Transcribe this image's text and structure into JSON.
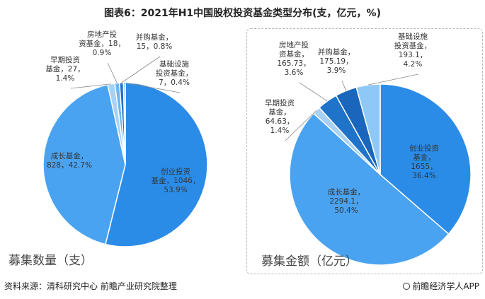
{
  "title": "图表6：2021年H1中国股权投资基金类型分布(支，亿元，%)",
  "footer": {
    "source": "资料来源：清科研究中心 前瞻产业研究院整理",
    "brand": "前瞻经济学人APP"
  },
  "chart_data": [
    {
      "type": "pie",
      "caption": "募集数量（支）",
      "start_angle_deg": 0,
      "slices": [
        {
          "name": "创业投资基金",
          "value": 1046,
          "percent": 53.9,
          "color": "#2b8ce8",
          "label_lines": [
            "创业投资",
            "基金，1046，",
            "53.9%"
          ]
        },
        {
          "name": "成长基金",
          "value": 828,
          "percent": 42.7,
          "color": "#4aa3f0",
          "label_lines": [
            "成长基金，",
            "828，42.7%"
          ]
        },
        {
          "name": "早期投资基金",
          "value": 27,
          "percent": 1.4,
          "color": "#a8d1f6",
          "label_lines": [
            "早期投资",
            "基金，27，",
            "1.4%"
          ]
        },
        {
          "name": "房地产投资基金",
          "value": 18,
          "percent": 0.9,
          "color": "#6ab6f2",
          "label_lines": [
            "房地产投",
            "资基金，18，",
            "0.9%"
          ]
        },
        {
          "name": "并购基金",
          "value": 15,
          "percent": 0.8,
          "color": "#1f73c9",
          "label_lines": [
            "并购基金，",
            "15，0.8%"
          ]
        },
        {
          "name": "基础设施投资基金",
          "value": 7,
          "percent": 0.4,
          "color": "#7fc0f5",
          "label_lines": [
            "基础设施",
            "投资基金，",
            "7，0.4%"
          ]
        }
      ]
    },
    {
      "type": "pie",
      "caption": "募集金额（亿元）",
      "start_angle_deg": 0,
      "slices": [
        {
          "name": "创业投资基金",
          "value": 1655,
          "percent": 36.4,
          "color": "#2b8ce8",
          "label_lines": [
            "创业投资",
            "基金，",
            "1655，",
            "36.4%"
          ]
        },
        {
          "name": "成长基金",
          "value": 2294.1,
          "percent": 50.4,
          "color": "#4aa3f0",
          "label_lines": [
            "成长基金，",
            "2294.1，",
            "50.4%"
          ]
        },
        {
          "name": "早期投资基金",
          "value": 64.63,
          "percent": 1.4,
          "color": "#a8d1f6",
          "label_lines": [
            "早期投资",
            "基金，",
            "64.63，",
            "1.4%"
          ]
        },
        {
          "name": "房地产投资基金",
          "value": 165.73,
          "percent": 3.6,
          "color": "#1f73c9",
          "label_lines": [
            "房地产投",
            "资基金，",
            "165.73，",
            "3.6%"
          ]
        },
        {
          "name": "并购基金",
          "value": 175.19,
          "percent": 3.9,
          "color": "#1a66bd",
          "label_lines": [
            "并购基金，",
            "175.19，",
            "3.9%"
          ]
        },
        {
          "name": "基础设施投资基金",
          "value": 193.1,
          "percent": 4.2,
          "color": "#8ec8f6",
          "label_lines": [
            "基础设施",
            "投资基金，",
            "193.1，",
            "4.2%"
          ]
        }
      ]
    }
  ]
}
